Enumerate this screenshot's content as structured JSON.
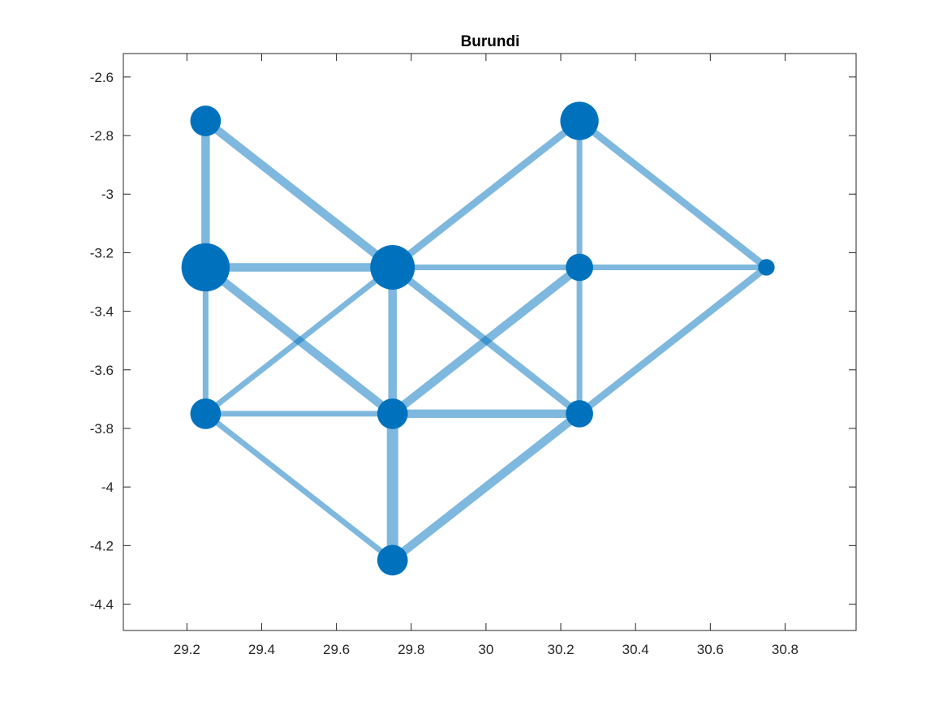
{
  "chart_data": {
    "type": "network",
    "title": "Burundi",
    "xlabel": "",
    "ylabel": "",
    "xlim": [
      29.03,
      30.99
    ],
    "ylim": [
      -4.49,
      -2.52
    ],
    "xticks": [
      29.2,
      29.4,
      29.6,
      29.8,
      30,
      30.2,
      30.4,
      30.6,
      30.8
    ],
    "yticks": [
      -2.6,
      -2.8,
      -3,
      -3.2,
      -3.4,
      -3.6,
      -3.8,
      -4,
      -4.2,
      -4.4
    ],
    "xtick_labels": [
      "29.2",
      "29.4",
      "29.6",
      "29.8",
      "30",
      "30.2",
      "30.4",
      "30.6",
      "30.8"
    ],
    "ytick_labels": [
      "-2.6",
      "-2.8",
      "-3",
      "-3.2",
      "-3.4",
      "-3.6",
      "-3.8",
      "-4",
      "-4.2",
      "-4.4"
    ],
    "grid": false,
    "node_color": "#0072bd",
    "edge_color": "#0072bd",
    "edge_opacity": 0.5,
    "nodes": [
      {
        "id": "n1",
        "x": 29.25,
        "y": -2.75,
        "weight": 2
      },
      {
        "id": "n2",
        "x": 29.25,
        "y": -3.25,
        "weight": 6
      },
      {
        "id": "n3",
        "x": 29.25,
        "y": -3.75,
        "weight": 2
      },
      {
        "id": "n4",
        "x": 29.75,
        "y": -3.25,
        "weight": 5
      },
      {
        "id": "n5",
        "x": 29.75,
        "y": -3.75,
        "weight": 2
      },
      {
        "id": "n6",
        "x": 29.75,
        "y": -4.25,
        "weight": 2
      },
      {
        "id": "n7",
        "x": 30.25,
        "y": -2.75,
        "weight": 3.5
      },
      {
        "id": "n8",
        "x": 30.25,
        "y": -3.25,
        "weight": 1.5
      },
      {
        "id": "n9",
        "x": 30.25,
        "y": -3.75,
        "weight": 1.5
      },
      {
        "id": "n10",
        "x": 30.75,
        "y": -3.25,
        "weight": 0.8
      }
    ],
    "edges": [
      {
        "from": "n1",
        "to": "n2",
        "weight": 3
      },
      {
        "from": "n1",
        "to": "n4",
        "weight": 3
      },
      {
        "from": "n2",
        "to": "n3",
        "weight": 2
      },
      {
        "from": "n2",
        "to": "n4",
        "weight": 3
      },
      {
        "from": "n2",
        "to": "n5",
        "weight": 3
      },
      {
        "from": "n3",
        "to": "n4",
        "weight": 2
      },
      {
        "from": "n3",
        "to": "n5",
        "weight": 2
      },
      {
        "from": "n3",
        "to": "n6",
        "weight": 2
      },
      {
        "from": "n4",
        "to": "n5",
        "weight": 3
      },
      {
        "from": "n4",
        "to": "n7",
        "weight": 2.5
      },
      {
        "from": "n4",
        "to": "n8",
        "weight": 2
      },
      {
        "from": "n4",
        "to": "n9",
        "weight": 2.5
      },
      {
        "from": "n5",
        "to": "n6",
        "weight": 4
      },
      {
        "from": "n5",
        "to": "n8",
        "weight": 3
      },
      {
        "from": "n5",
        "to": "n9",
        "weight": 3
      },
      {
        "from": "n6",
        "to": "n9",
        "weight": 3
      },
      {
        "from": "n7",
        "to": "n8",
        "weight": 2
      },
      {
        "from": "n7",
        "to": "n10",
        "weight": 2.5
      },
      {
        "from": "n8",
        "to": "n9",
        "weight": 2
      },
      {
        "from": "n8",
        "to": "n10",
        "weight": 2
      },
      {
        "from": "n9",
        "to": "n10",
        "weight": 2.5
      }
    ]
  }
}
